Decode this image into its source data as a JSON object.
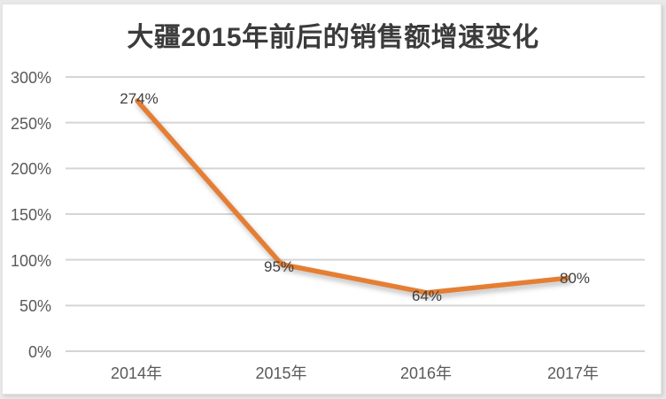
{
  "chart_data": {
    "type": "line",
    "title": "大疆2015年前后的销售额增速变化",
    "categories": [
      "2014年",
      "2015年",
      "2016年",
      "2017年"
    ],
    "values": [
      274,
      95,
      64,
      80
    ],
    "data_labels": [
      "274%",
      "95%",
      "64%",
      "80%"
    ],
    "yticks": [
      0,
      50,
      100,
      150,
      200,
      250,
      300
    ],
    "ytick_labels": [
      "0%",
      "50%",
      "100%",
      "150%",
      "200%",
      "250%",
      "300%"
    ],
    "ylim": [
      0,
      300
    ],
    "xlabel": "",
    "ylabel": "",
    "grid": "horizontal-only",
    "legend_position": "none",
    "label_positions": [
      "above-center",
      "left-of-point",
      "below-center",
      "right-of-point"
    ],
    "line_color": "#E57E33",
    "gridline_color": "#d5d5d5"
  },
  "colors": {
    "frame_background": "#e9e9e9",
    "card_background": "#ffffff",
    "card_border": "#e3e3e3",
    "title_text": "#3b3b3b",
    "axis_text": "#595959",
    "data_label_text": "#3f3f3f"
  }
}
